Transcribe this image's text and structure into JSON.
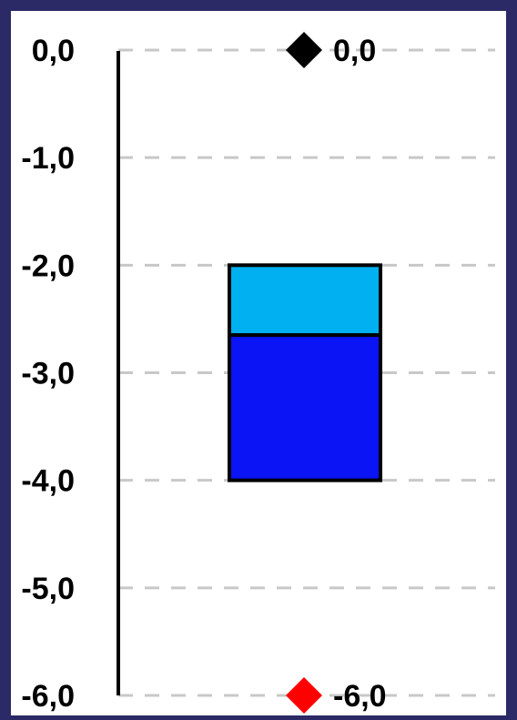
{
  "chart_data": {
    "type": "bar",
    "title": "",
    "xlabel": "",
    "ylabel": "",
    "ylim": [
      -6.0,
      0.0
    ],
    "yticks": [
      "0,0",
      "-1,0",
      "-2,0",
      "-3,0",
      "-4,0",
      "-5,0",
      "-6,0"
    ],
    "ytick_values": [
      0.0,
      -1.0,
      -2.0,
      -3.0,
      -4.0,
      -5.0,
      -6.0
    ],
    "grid": true,
    "grid_style": "dashed",
    "stacked_bar": {
      "segments": [
        {
          "from": -2.0,
          "to": -2.65,
          "color": "#00b0f0"
        },
        {
          "from": -2.65,
          "to": -4.0,
          "color": "#0a14f5"
        }
      ]
    },
    "markers": [
      {
        "value": 0.0,
        "label": "0,0",
        "color": "#000000",
        "shape": "diamond"
      },
      {
        "value": -6.0,
        "label": "-6,0",
        "color": "#ff0000",
        "shape": "diamond"
      }
    ]
  },
  "colors": {
    "background": "#2b2a66",
    "panel": "#ffffff",
    "grid": "#c8c8c8",
    "axis": "#000000"
  }
}
